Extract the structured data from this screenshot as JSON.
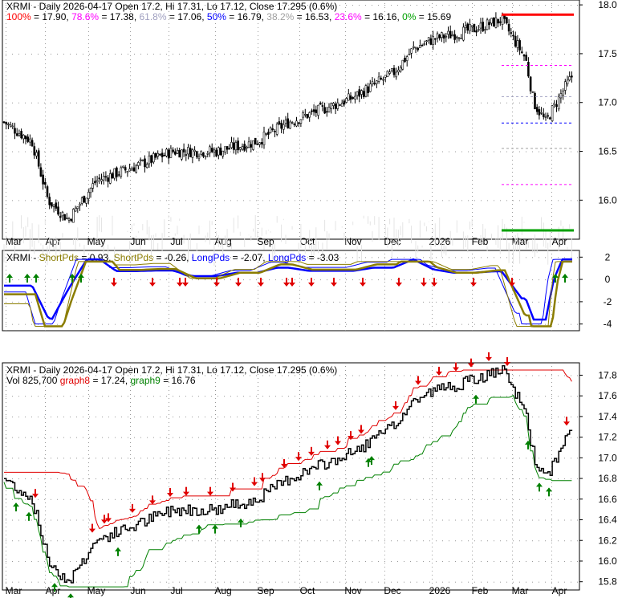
{
  "colors": {
    "up": "#000000",
    "down": "#000000",
    "fib100": "#ff0000",
    "fib786": "#ff00ff",
    "fib618": "#a0a0c0",
    "fib50": "#0000ff",
    "fib382": "#a0a0a0",
    "fib236": "#ff00ff",
    "fib0": "#00a000",
    "short": "#8b7d00",
    "long": "#0000ff",
    "sell": "#e00000",
    "buy": "#008000",
    "upper": "#e00000",
    "lower": "#008000"
  },
  "chart_data": [
    {
      "type": "candlestick",
      "panel": "price",
      "title": "XRMI - Daily 2026-04-17 Open 17.2, Hi 17.31, Lo 17.12, Close 17.295 (0.6%)",
      "fib_labels": [
        {
          "pct": "100%",
          "val": " = 17.90, ",
          "color": "#ff0000"
        },
        {
          "pct": "78.6%",
          "val": " = 17.38, ",
          "color": "#ff00ff"
        },
        {
          "pct": "61.8%",
          "val": " = 17.06, ",
          "color": "#a0a0c0"
        },
        {
          "pct": "50%",
          "val": " = 16.79, ",
          "color": "#0000ff"
        },
        {
          "pct": "38.2%",
          "val": " = 16.53, ",
          "color": "#a0a0a0"
        },
        {
          "pct": "23.6%",
          "val": " = 16.16, ",
          "color": "#ff00ff"
        },
        {
          "pct": "0%",
          "val": " = 15.69",
          "color": "#00a000"
        }
      ],
      "fib_values": [
        17.9,
        17.38,
        17.06,
        16.79,
        16.53,
        16.16,
        15.69
      ],
      "ylim": [
        15.6,
        18.05
      ],
      "yticks": [
        "18.0",
        "17.5",
        "17.0",
        "16.5",
        "16.0"
      ],
      "xticks": [
        "Mar",
        "Apr",
        "May",
        "Jun",
        "Jul",
        "Aug",
        "Sep",
        "Oct",
        "Nov",
        "Dec",
        "2026",
        "Feb",
        "Mar",
        "Apr"
      ],
      "approx_closes": [
        16.8,
        16.6,
        16.0,
        15.8,
        16.2,
        16.35,
        16.5,
        16.5,
        16.6,
        16.8,
        17.05,
        17.3,
        17.55,
        17.65,
        17.75,
        17.85,
        17.45,
        17.0,
        16.8,
        17.1,
        17.3
      ]
    },
    {
      "type": "line",
      "panel": "oscillator",
      "title_parts": [
        {
          "t": "XRMI - ",
          "c": "#000"
        },
        {
          "t": "ShortPds",
          "c": "#8b7d00"
        },
        {
          "t": " = 0.93, ",
          "c": "#000"
        },
        {
          "t": "ShortPds",
          "c": "#8b7d00"
        },
        {
          "t": " = -0.26, ",
          "c": "#000"
        },
        {
          "t": "LongPds",
          "c": "#0000ff"
        },
        {
          "t": " = -2.07, ",
          "c": "#000"
        },
        {
          "t": "LongPds",
          "c": "#0000ff"
        },
        {
          "t": " = -3.03",
          "c": "#000"
        }
      ],
      "ylim": [
        -4.6,
        2.6
      ],
      "yticks": [
        "2",
        "0",
        "-2",
        "-4"
      ]
    },
    {
      "type": "line",
      "panel": "trend",
      "title": "XRMI - Daily 2026-04-17 Open 17.2, Hi 17.31, Lo 17.12, Close 17.295 (0.6%)",
      "title2_parts": [
        {
          "t": "Vol 825,700 ",
          "c": "#000"
        },
        {
          "t": "graph8",
          "c": "#e00000"
        },
        {
          "t": " = 17.24, ",
          "c": "#000"
        },
        {
          "t": "graph9",
          "c": "#008000"
        },
        {
          "t": " = 16.76",
          "c": "#000"
        }
      ],
      "ylim": [
        15.72,
        17.92
      ],
      "yticks": [
        "17.8",
        "17.6",
        "17.4",
        "17.2",
        "17.0",
        "16.8",
        "16.6",
        "16.4",
        "16.2",
        "16.0",
        "15.8"
      ]
    }
  ]
}
